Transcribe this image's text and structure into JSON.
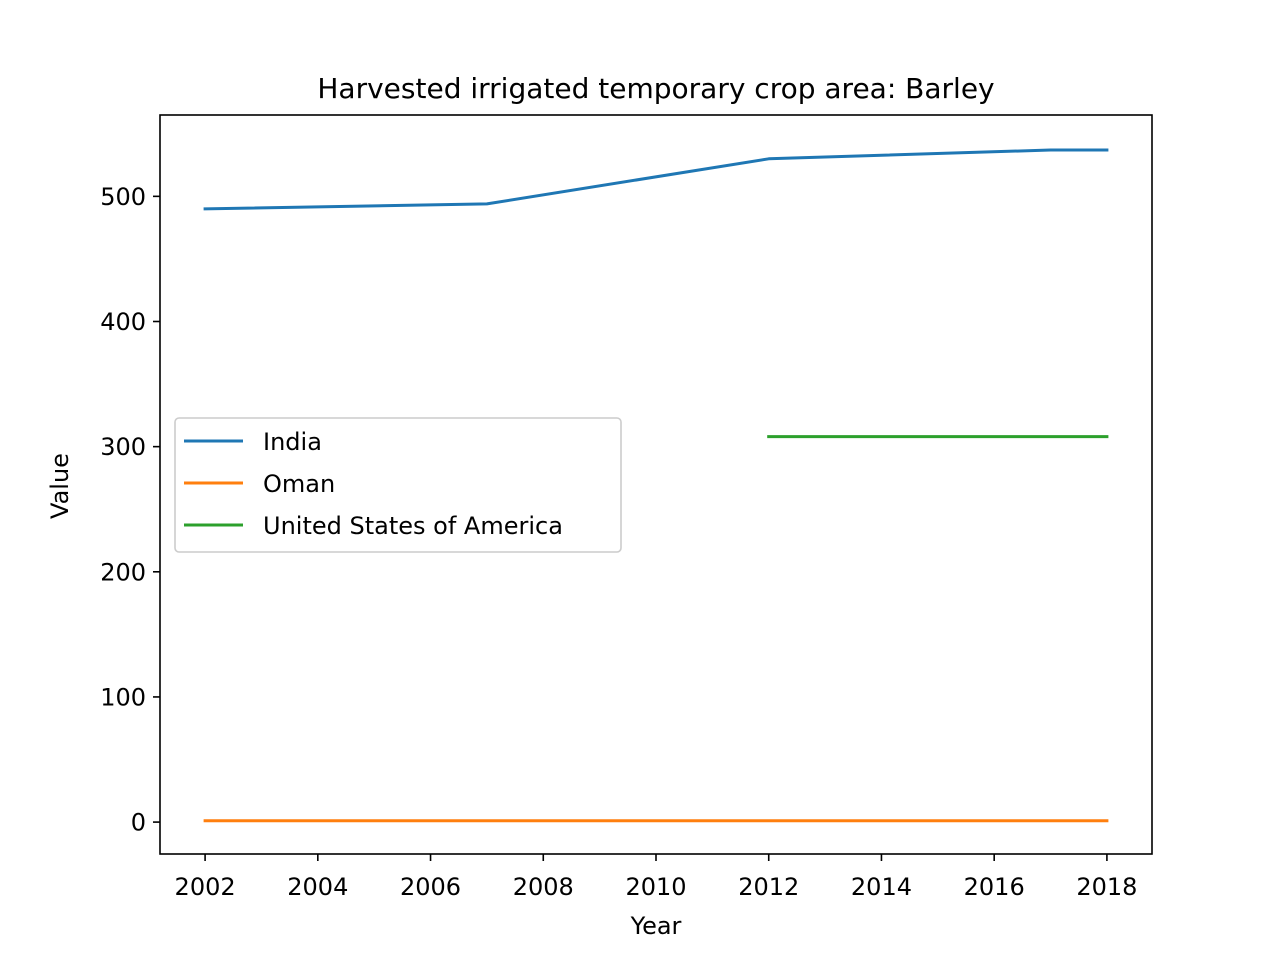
{
  "chart_data": {
    "type": "line",
    "title": "Harvested irrigated temporary crop area: Barley",
    "xlabel": "Year",
    "ylabel": "Value",
    "xlim": [
      2001.2,
      2018.8
    ],
    "ylim": [
      -25.5,
      565
    ],
    "xticks": [
      2002,
      2004,
      2006,
      2008,
      2010,
      2012,
      2014,
      2016,
      2018
    ],
    "yticks": [
      0,
      100,
      200,
      300,
      400,
      500
    ],
    "grid": false,
    "legend_position": "center-left",
    "series": [
      {
        "name": "India",
        "color": "#1f77b4",
        "points": [
          [
            2002,
            490
          ],
          [
            2007,
            494
          ],
          [
            2012,
            530
          ],
          [
            2017,
            537
          ],
          [
            2018,
            537
          ]
        ]
      },
      {
        "name": "Oman",
        "color": "#ff7f0e",
        "points": [
          [
            2002,
            1
          ],
          [
            2018,
            1
          ]
        ]
      },
      {
        "name": "United States of America",
        "color": "#2ca02c",
        "points": [
          [
            2012,
            308
          ],
          [
            2018,
            308
          ]
        ]
      }
    ]
  }
}
